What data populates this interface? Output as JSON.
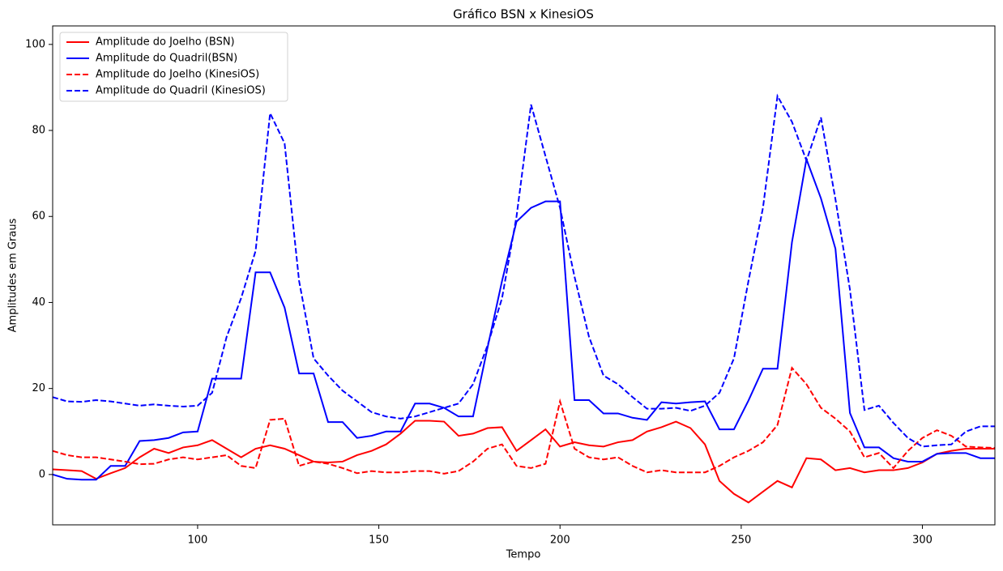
{
  "chart_data": {
    "type": "line",
    "title": "Gráfico BSN x KinesiOS",
    "x_label": "Tempo",
    "y_label": "Amplitudes em Graus",
    "legend": "upper left",
    "x": [
      60,
      64,
      68,
      72,
      76,
      80,
      84,
      88,
      92,
      96,
      100,
      104,
      108,
      112,
      116,
      120,
      124,
      128,
      132,
      136,
      140,
      144,
      148,
      152,
      156,
      160,
      164,
      168,
      172,
      176,
      180,
      184,
      188,
      192,
      196,
      200,
      204,
      208,
      212,
      216,
      220,
      224,
      228,
      232,
      236,
      240,
      244,
      248,
      252,
      256,
      260,
      264,
      268,
      272,
      276,
      280,
      284,
      288,
      292,
      296,
      300,
      304,
      308,
      312,
      316,
      320
    ],
    "series": [
      {
        "name": "Amplitude do Joelho (BSN)",
        "color": "#ff0000",
        "dashed": false,
        "values": [
          1.2,
          1,
          0.8,
          -1,
          0.3,
          1.5,
          4,
          6,
          5,
          6.3,
          6.8,
          8,
          6,
          4,
          6,
          6.8,
          6,
          4.5,
          3,
          2.8,
          3,
          4.5,
          5.5,
          7,
          9.5,
          12.5,
          12.5,
          12.3,
          9,
          9.5,
          10.8,
          11,
          5.5,
          8,
          10.5,
          6.5,
          7.5,
          6.8,
          6.5,
          7.5,
          8,
          10,
          11,
          12.3,
          10.8,
          7,
          -1.5,
          -4.5,
          -6.5,
          -4,
          -1.5,
          -3,
          3.8,
          3.5,
          1,
          1.5,
          0.5,
          1,
          1,
          1.5,
          2.8,
          4.8,
          5.5,
          6,
          6,
          6
        ]
      },
      {
        "name": "Amplitude do Quadril(BSN)",
        "color": "#0000ff",
        "dashed": false,
        "values": [
          0,
          -1,
          -1.2,
          -1.2,
          2,
          2,
          7.8,
          8,
          8.5,
          9.8,
          10,
          22.3,
          22.3,
          22.3,
          47,
          47,
          38.8,
          23.5,
          23.5,
          12.2,
          12.2,
          8.5,
          9,
          10,
          10,
          16.5,
          16.5,
          15.5,
          13.5,
          13.5,
          29.5,
          45,
          58.8,
          62,
          63.5,
          63.5,
          17.3,
          17.3,
          14.2,
          14.2,
          13.2,
          12.7,
          16.8,
          16.5,
          16.8,
          17,
          10.5,
          10.5,
          17.2,
          24.6,
          24.6,
          54,
          73.3,
          64.2,
          52.5,
          14.3,
          6.3,
          6.3,
          3.8,
          3,
          3,
          4.8,
          5,
          5,
          3.8,
          3.8
        ]
      },
      {
        "name": "Amplitude do Joelho (KinesiOS)",
        "color": "#ff0000",
        "dashed": true,
        "values": [
          5.5,
          4.5,
          4,
          4,
          3.5,
          3,
          2.4,
          2.5,
          3.5,
          4,
          3.5,
          4,
          4.5,
          2,
          1.5,
          12.7,
          13,
          2,
          3,
          2.5,
          1.5,
          0.3,
          0.8,
          0.5,
          0.5,
          0.8,
          0.8,
          0.2,
          0.8,
          3,
          6,
          7,
          2,
          1.5,
          2.5,
          17,
          6,
          4,
          3.5,
          4,
          2,
          0.5,
          1,
          0.5,
          0.5,
          0.5,
          2,
          4,
          5.5,
          7.5,
          11.5,
          24.8,
          21,
          15.5,
          13,
          10,
          4,
          5,
          1.5,
          5.5,
          8.5,
          10.3,
          9,
          6.5,
          6.3,
          6.2
        ]
      },
      {
        "name": "Amplitude do Quadril (KinesiOS)",
        "color": "#0000ff",
        "dashed": true,
        "values": [
          18,
          17,
          16.9,
          17.3,
          17,
          16.5,
          16,
          16.3,
          16,
          15.8,
          16,
          19,
          32,
          41,
          52,
          84,
          77,
          45,
          27,
          23,
          19.5,
          17,
          14.5,
          13.5,
          13,
          13.5,
          14.5,
          15.5,
          16.5,
          21,
          30,
          41,
          60,
          86,
          74,
          62,
          46,
          32,
          23,
          21,
          18,
          15.3,
          15.3,
          15.5,
          14.8,
          16,
          19,
          27,
          45,
          62,
          88,
          82,
          73,
          83,
          64,
          43,
          15,
          16,
          12,
          8.5,
          6.5,
          6.8,
          7,
          10,
          11.2,
          11.2
        ]
      }
    ],
    "xlim": [
      60,
      320
    ],
    "xticks": [
      100,
      150,
      200,
      250,
      300
    ],
    "ylim": [
      -11.7,
      104.3
    ],
    "yticks": [
      0,
      20,
      40,
      60,
      80,
      100
    ]
  }
}
